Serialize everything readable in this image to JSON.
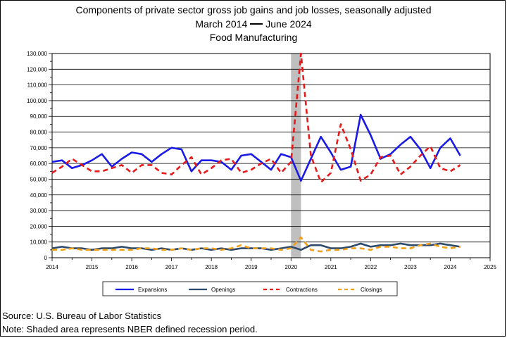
{
  "header": {
    "line1": "Components of private sector gross job gains and job losses, seasonally adjusted",
    "line2_start": "March 2014",
    "line2_end": "June 2024",
    "line3": "Food Manufacturing"
  },
  "footer": {
    "source": "Source: U.S. Bureau of Labor Statistics",
    "note": "Note: Shaded area represents NBER defined recession period."
  },
  "chart_data": {
    "type": "line",
    "title": "Components of private sector gross job gains and job losses, seasonally adjusted",
    "subtitle": "March 2014 — June 2024",
    "subtitle2": "Food Manufacturing",
    "xlim": [
      2014,
      2025
    ],
    "ylim": [
      0,
      130000
    ],
    "x_ticks": [
      "2014",
      "2015",
      "2016",
      "2017",
      "2018",
      "2019",
      "2020",
      "2021",
      "2022",
      "2023",
      "2024",
      "2025"
    ],
    "y_ticks": [
      "0",
      "10,000",
      "20,000",
      "30,000",
      "40,000",
      "50,000",
      "60,000",
      "70,000",
      "80,000",
      "90,000",
      "100,000",
      "110,000",
      "120,000",
      "130,000"
    ],
    "grid": "horizontal",
    "legend_position": "bottom",
    "recession_band": [
      2020.0,
      2020.25
    ],
    "x": [
      2014.0,
      2014.25,
      2014.5,
      2014.75,
      2015.0,
      2015.25,
      2015.5,
      2015.75,
      2016.0,
      2016.25,
      2016.5,
      2016.75,
      2017.0,
      2017.25,
      2017.5,
      2017.75,
      2018.0,
      2018.25,
      2018.5,
      2018.75,
      2019.0,
      2019.25,
      2019.5,
      2019.75,
      2020.0,
      2020.25,
      2020.5,
      2020.75,
      2021.0,
      2021.25,
      2021.5,
      2021.75,
      2022.0,
      2022.25,
      2022.5,
      2022.75,
      2023.0,
      2023.25,
      2023.5,
      2023.75,
      2024.0,
      2024.25
    ],
    "series": [
      {
        "name": "Expansions",
        "color": "#1a1ae6",
        "style": "solid",
        "values": [
          61000,
          62000,
          57000,
          59000,
          62000,
          66000,
          58000,
          63000,
          67000,
          66000,
          61000,
          66000,
          70000,
          69000,
          55000,
          62000,
          62000,
          61000,
          56000,
          65000,
          66000,
          61000,
          56000,
          66000,
          64000,
          49000,
          63000,
          77000,
          67000,
          56000,
          58000,
          91000,
          78000,
          63000,
          66000,
          72000,
          77000,
          69000,
          57000,
          70000,
          76000,
          65000
        ]
      },
      {
        "name": "Openings",
        "color": "#2e4a6b",
        "style": "solid",
        "values": [
          6000,
          7000,
          6000,
          6000,
          5000,
          6000,
          6000,
          7000,
          6000,
          6000,
          5000,
          6000,
          5000,
          6000,
          5000,
          6000,
          5000,
          6000,
          5000,
          6000,
          6000,
          6000,
          5000,
          6000,
          7000,
          5000,
          8000,
          8000,
          6000,
          6000,
          7000,
          9000,
          7000,
          8000,
          8000,
          9000,
          8000,
          8000,
          8000,
          9000,
          8000,
          7000
        ]
      },
      {
        "name": "Contractions",
        "color": "#e61a1a",
        "style": "dashed",
        "values": [
          54000,
          58000,
          63000,
          59000,
          55000,
          55000,
          57000,
          59000,
          54000,
          59000,
          59000,
          54000,
          53000,
          59000,
          64000,
          53000,
          57000,
          62000,
          63000,
          54000,
          56000,
          60000,
          63000,
          54000,
          61000,
          130000,
          65000,
          48000,
          54000,
          85000,
          69000,
          49000,
          53000,
          64000,
          65000,
          53000,
          58000,
          65000,
          71000,
          57000,
          55000,
          59000
        ]
      },
      {
        "name": "Closings",
        "color": "#f2a01a",
        "style": "dashed",
        "values": [
          5000,
          5000,
          6000,
          5000,
          5000,
          5000,
          5000,
          5000,
          5000,
          6000,
          6000,
          5000,
          5000,
          6000,
          5000,
          6000,
          6000,
          5000,
          6000,
          8000,
          6000,
          6000,
          6000,
          5000,
          6000,
          13000,
          5000,
          4000,
          5000,
          5000,
          6000,
          6000,
          5000,
          7000,
          7000,
          6000,
          6000,
          8000,
          9000,
          7000,
          6000,
          7000
        ]
      }
    ]
  }
}
